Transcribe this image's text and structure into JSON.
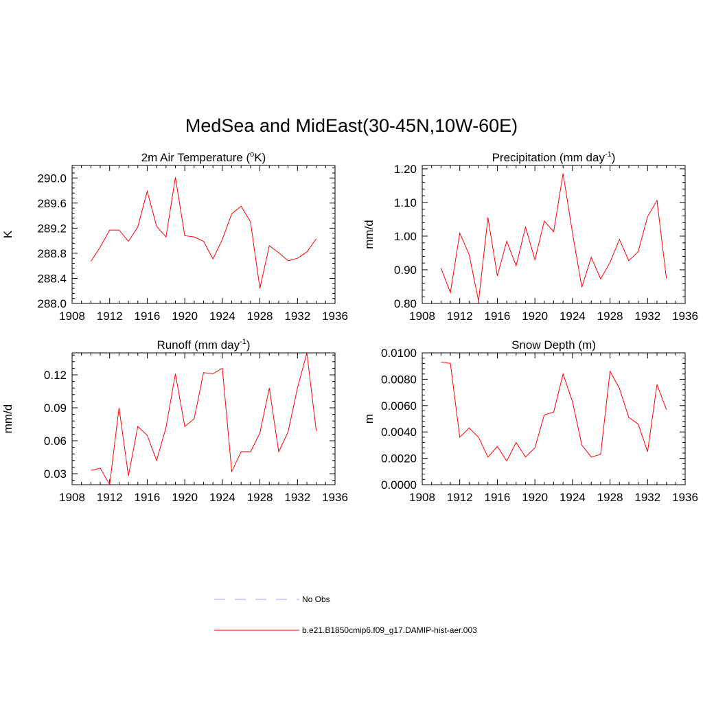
{
  "title": "MedSea and MidEast(30-45N,10W-60E)",
  "colors": {
    "model": "#ff0000",
    "obs": "#9999ff",
    "axis": "#000000"
  },
  "legend": {
    "entries": [
      {
        "label": "No Obs",
        "style": "dashed",
        "color": "#9999ff"
      },
      {
        "label": "b.e21.B1850cmip6.f09_g17.DAMIP-hist-aer.003",
        "style": "solid",
        "color": "#ff0000"
      }
    ]
  },
  "chart_data": [
    {
      "type": "line",
      "title": "2m Air Temperature (",
      "title_super": "o",
      "title_after": "K)",
      "ylabel": "K",
      "xlim": [
        1908,
        1936
      ],
      "ylim": [
        288.0,
        290.2
      ],
      "xticks": [
        1908,
        1912,
        1916,
        1920,
        1924,
        1928,
        1932,
        1936
      ],
      "yticks": [
        288.0,
        288.4,
        288.8,
        289.2,
        289.6,
        290.0
      ],
      "ytick_labels": [
        "288.0",
        "288.4",
        "288.8",
        "289.2",
        "289.6",
        "290.0"
      ],
      "x": [
        1910,
        1911,
        1912,
        1913,
        1914,
        1915,
        1916,
        1917,
        1918,
        1919,
        1920,
        1921,
        1922,
        1923,
        1924,
        1925,
        1926,
        1927,
        1928,
        1929,
        1930,
        1931,
        1932,
        1933,
        1934
      ],
      "series": [
        {
          "name": "b.e21.B1850cmip6.f09_g17.DAMIP-hist-aer.003",
          "values": [
            288.67,
            288.9,
            289.17,
            289.17,
            288.99,
            289.22,
            289.79,
            289.23,
            289.06,
            290.01,
            289.08,
            289.06,
            288.99,
            288.71,
            289.02,
            289.43,
            289.55,
            289.3,
            288.24,
            288.92,
            288.81,
            288.68,
            288.72,
            288.82,
            289.03
          ]
        }
      ]
    },
    {
      "type": "line",
      "title": "Precipitation (mm day",
      "title_super": "-1",
      "title_after": ")",
      "ylabel": "mm/d",
      "xlim": [
        1908,
        1936
      ],
      "ylim": [
        0.8,
        1.21
      ],
      "xticks": [
        1908,
        1912,
        1916,
        1920,
        1924,
        1928,
        1932,
        1936
      ],
      "yticks": [
        0.8,
        0.9,
        1.0,
        1.1,
        1.2
      ],
      "ytick_labels": [
        "0.80",
        "0.90",
        "1.00",
        "1.10",
        "1.20"
      ],
      "x": [
        1910,
        1911,
        1912,
        1913,
        1914,
        1915,
        1916,
        1917,
        1918,
        1919,
        1920,
        1921,
        1922,
        1923,
        1924,
        1925,
        1926,
        1927,
        1928,
        1929,
        1930,
        1931,
        1932,
        1933,
        1934
      ],
      "series": [
        {
          "name": "b.e21.B1850cmip6.f09_g17.DAMIP-hist-aer.003",
          "values": [
            0.905,
            0.832,
            1.009,
            0.945,
            0.807,
            1.055,
            0.882,
            0.985,
            0.912,
            1.027,
            0.93,
            1.045,
            1.013,
            1.186,
            1.01,
            0.848,
            0.937,
            0.873,
            0.922,
            0.99,
            0.927,
            0.954,
            1.058,
            1.106,
            0.875
          ]
        }
      ]
    },
    {
      "type": "line",
      "title": "Runoff (mm day",
      "title_super": "-1",
      "title_after": ")",
      "ylabel": "mm/d",
      "xlim": [
        1908,
        1936
      ],
      "ylim": [
        0.02,
        0.14
      ],
      "xticks": [
        1908,
        1912,
        1916,
        1920,
        1924,
        1928,
        1932,
        1936
      ],
      "yticks": [
        0.03,
        0.06,
        0.09,
        0.12
      ],
      "ytick_labels": [
        "0.03",
        "0.06",
        "0.09",
        "0.12"
      ],
      "x": [
        1910,
        1911,
        1912,
        1913,
        1914,
        1915,
        1916,
        1917,
        1918,
        1919,
        1920,
        1921,
        1922,
        1923,
        1924,
        1925,
        1926,
        1927,
        1928,
        1929,
        1930,
        1931,
        1932,
        1933,
        1934
      ],
      "series": [
        {
          "name": "b.e21.B1850cmip6.f09_g17.DAMIP-hist-aer.003",
          "values": [
            0.033,
            0.035,
            0.02,
            0.09,
            0.028,
            0.073,
            0.065,
            0.042,
            0.072,
            0.121,
            0.073,
            0.08,
            0.122,
            0.121,
            0.126,
            0.032,
            0.05,
            0.05,
            0.067,
            0.108,
            0.05,
            0.068,
            0.108,
            0.14,
            0.069
          ]
        }
      ]
    },
    {
      "type": "line",
      "title": "Snow Depth (m)",
      "title_super": "",
      "title_after": "",
      "ylabel": "m",
      "xlim": [
        1908,
        1936
      ],
      "ylim": [
        0.0,
        0.01
      ],
      "xticks": [
        1908,
        1912,
        1916,
        1920,
        1924,
        1928,
        1932,
        1936
      ],
      "yticks": [
        0.0,
        0.002,
        0.004,
        0.006,
        0.008,
        0.01
      ],
      "ytick_labels": [
        "0.0000",
        "0.0020",
        "0.0040",
        "0.0060",
        "0.0080",
        "0.0100"
      ],
      "x": [
        1910,
        1911,
        1912,
        1913,
        1914,
        1915,
        1916,
        1917,
        1918,
        1919,
        1920,
        1921,
        1922,
        1923,
        1924,
        1925,
        1926,
        1927,
        1928,
        1929,
        1930,
        1931,
        1932,
        1933,
        1934
      ],
      "series": [
        {
          "name": "b.e21.B1850cmip6.f09_g17.DAMIP-hist-aer.003",
          "values": [
            0.0093,
            0.0092,
            0.0036,
            0.0043,
            0.0036,
            0.0021,
            0.0029,
            0.0018,
            0.0032,
            0.0021,
            0.0028,
            0.0053,
            0.0055,
            0.0084,
            0.0063,
            0.003,
            0.0021,
            0.0023,
            0.0086,
            0.0073,
            0.0051,
            0.0046,
            0.0025,
            0.0076,
            0.0057
          ]
        }
      ]
    }
  ]
}
